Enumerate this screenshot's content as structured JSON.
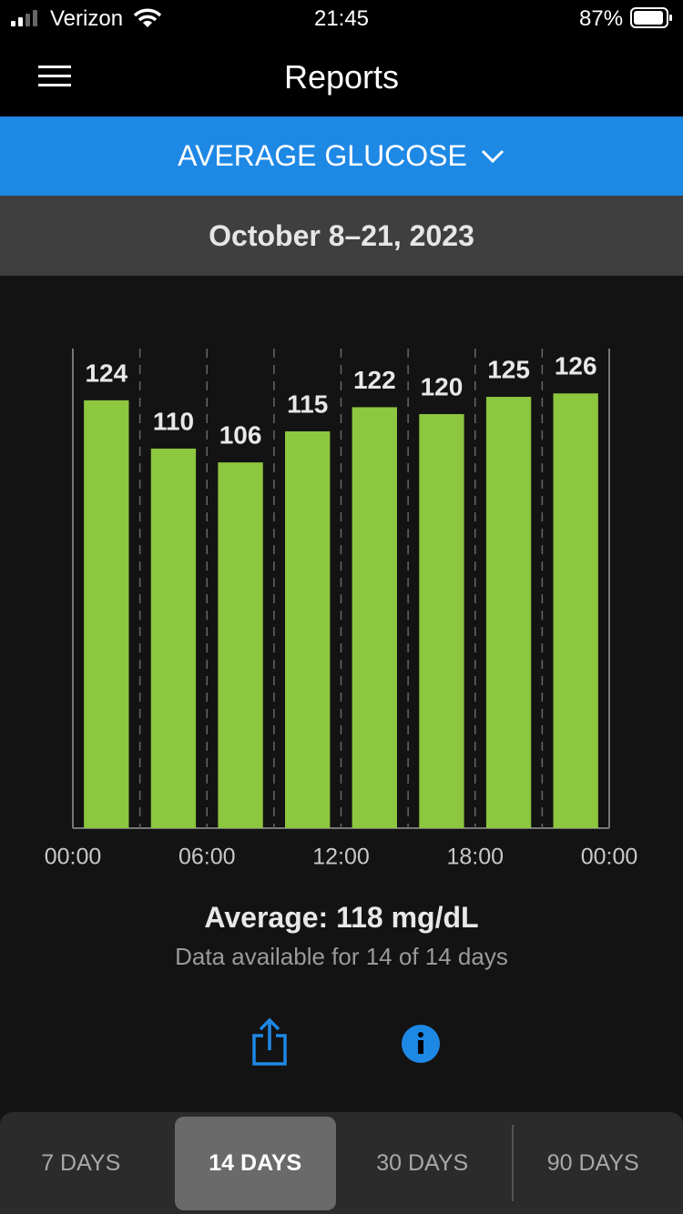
{
  "status_bar": {
    "carrier": "Verizon",
    "time": "21:45",
    "battery": "87%"
  },
  "header": {
    "title": "Reports"
  },
  "report_selector": {
    "label": "AVERAGE GLUCOSE"
  },
  "date_range": "October 8–21, 2023",
  "chart_data": {
    "type": "bar",
    "x": [
      1.5,
      4.5,
      7.5,
      10.5,
      13.5,
      16.5,
      19.5,
      22.5
    ],
    "values": [
      124,
      110,
      106,
      115,
      122,
      120,
      125,
      126
    ],
    "color": "#8dc63f",
    "xlim": [
      0,
      24
    ],
    "xticks": [
      {
        "value": 0,
        "label": "00:00"
      },
      {
        "value": 6,
        "label": "06:00"
      },
      {
        "value": 12,
        "label": "12:00"
      },
      {
        "value": 18,
        "label": "18:00"
      },
      {
        "value": 24,
        "label": "00:00"
      }
    ],
    "ylim": [
      0,
      139
    ]
  },
  "summary": {
    "average": "Average: 118 mg/dL",
    "availability": "Data available for 14 of 14 days"
  },
  "tabs": {
    "items": [
      "7 DAYS",
      "14 DAYS",
      "30 DAYS",
      "90 DAYS"
    ],
    "selected": 1
  }
}
